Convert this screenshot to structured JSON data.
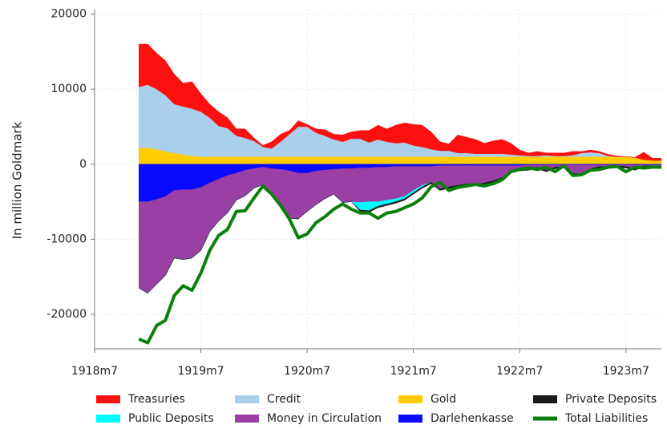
{
  "chart_data": {
    "type": "area",
    "ylabel": "In million Goldmark",
    "x": [
      "1918m12",
      "1919m1",
      "1919m2",
      "1919m3",
      "1919m4",
      "1919m5",
      "1919m6",
      "1919m7",
      "1919m8",
      "1919m9",
      "1919m10",
      "1919m11",
      "1919m12",
      "1920m1",
      "1920m2",
      "1920m3",
      "1920m4",
      "1920m5",
      "1920m6",
      "1920m7",
      "1920m8",
      "1920m9",
      "1920m10",
      "1920m11",
      "1920m12",
      "1921m1",
      "1921m2",
      "1921m3",
      "1921m4",
      "1921m5",
      "1921m6",
      "1921m7",
      "1921m8",
      "1921m9",
      "1921m10",
      "1921m11",
      "1921m12",
      "1922m1",
      "1922m2",
      "1922m3",
      "1922m4",
      "1922m5",
      "1922m6",
      "1922m7",
      "1922m8",
      "1922m9",
      "1922m10",
      "1922m11",
      "1922m12",
      "1923m1",
      "1923m2",
      "1923m3",
      "1923m4",
      "1923m5",
      "1923m6",
      "1923m7",
      "1923m8",
      "1923m9",
      "1923m10",
      "1923m11"
    ],
    "xlim": [
      "1918m7",
      "1923m11"
    ],
    "xticks": [
      "1918m7",
      "1919m7",
      "1920m7",
      "1921m7",
      "1922m7",
      "1923m7"
    ],
    "ylim": [
      -24600,
      20600
    ],
    "yticks": [
      -20000,
      -10000,
      0,
      10000,
      20000
    ],
    "grid": true,
    "legend": "bottom",
    "series": [
      {
        "name": "Treasuries",
        "color": "#ff1010",
        "values": [
          5700,
          5400,
          4800,
          4600,
          4000,
          3100,
          3600,
          2400,
          1800,
          1900,
          1400,
          900,
          1200,
          400,
          200,
          900,
          1000,
          500,
          800,
          300,
          500,
          800,
          700,
          900,
          900,
          1100,
          1600,
          1900,
          1700,
          2400,
          2600,
          2800,
          2900,
          2300,
          1200,
          900,
          2400,
          2100,
          1900,
          1400,
          1700,
          1900,
          1500,
          700,
          400,
          600,
          300,
          400,
          400,
          500,
          200,
          300,
          200,
          200,
          100,
          0,
          0,
          1000,
          300,
          300
        ]
      },
      {
        "name": "Credit",
        "color": "#a8d0ea",
        "values": [
          8100,
          8400,
          8000,
          7500,
          6500,
          6400,
          6300,
          6000,
          5200,
          4100,
          3800,
          2800,
          2500,
          2100,
          1300,
          1100,
          2000,
          3000,
          4000,
          4000,
          3200,
          2800,
          2300,
          2000,
          2400,
          2400,
          1900,
          2300,
          2000,
          1800,
          1900,
          1500,
          1300,
          1000,
          800,
          800,
          500,
          500,
          400,
          400,
          400,
          400,
          300,
          200,
          100,
          100,
          200,
          100,
          100,
          200,
          500,
          600,
          500,
          100,
          0,
          0,
          0,
          0,
          0,
          0
        ]
      },
      {
        "name": "Gold",
        "color": "#ffcc00",
        "values": [
          2200,
          2200,
          2000,
          1700,
          1500,
          1300,
          1100,
          1000,
          1000,
          1000,
          1000,
          1000,
          1000,
          1000,
          1000,
          1000,
          1000,
          1000,
          1000,
          1000,
          1000,
          1000,
          1000,
          1000,
          1000,
          1000,
          1000,
          1000,
          1000,
          1000,
          1000,
          1000,
          1000,
          1000,
          1000,
          1000,
          1000,
          1000,
          1000,
          1000,
          1000,
          1000,
          1000,
          1000,
          1000,
          1000,
          1000,
          1000,
          1000,
          1000,
          1000,
          1000,
          1000,
          1000,
          1000,
          1000,
          900,
          600,
          500,
          500
        ]
      },
      {
        "name": "Private Deposits",
        "color": "#1a1a1a",
        "values": [
          0,
          0,
          0,
          0,
          0,
          0,
          0,
          0,
          0,
          0,
          0,
          0,
          0,
          0,
          0,
          0,
          0,
          0,
          0,
          0,
          0,
          0,
          0,
          0,
          0,
          -200,
          -200,
          -200,
          -200,
          -200,
          -200,
          -200,
          -200,
          -200,
          -200,
          -200,
          -200,
          -200,
          -200,
          -200,
          -200,
          -200,
          -200,
          -200,
          -200,
          -200,
          -200,
          -200,
          -200,
          -200,
          -200,
          -200,
          -200,
          -200,
          -200,
          -200,
          -200,
          -200,
          -200,
          -200
        ]
      },
      {
        "name": "Public Deposits",
        "color": "#00ffff",
        "values": [
          0,
          0,
          0,
          0,
          0,
          0,
          0,
          0,
          0,
          0,
          0,
          0,
          0,
          0,
          0,
          0,
          0,
          0,
          0,
          0,
          0,
          0,
          0,
          0,
          0,
          -1000,
          -1200,
          -600,
          -500,
          -400,
          -300,
          -300,
          -200,
          0,
          0,
          0,
          0,
          0,
          0,
          0,
          0,
          0,
          0,
          0,
          0,
          0,
          0,
          0,
          0,
          0,
          0,
          0,
          0,
          0,
          0,
          0,
          0,
          0,
          0,
          0
        ]
      },
      {
        "name": "Money in Circulation",
        "color": "#9a3fa4",
        "values": [
          -11500,
          -12200,
          -11300,
          -10500,
          -9000,
          -9300,
          -9100,
          -8400,
          -6500,
          -5600,
          -5000,
          -3600,
          -3400,
          -2600,
          -2300,
          -3400,
          -4700,
          -6300,
          -6100,
          -5100,
          -4500,
          -3800,
          -3300,
          -4500,
          -4400,
          -4600,
          -4500,
          -4600,
          -4400,
          -4300,
          -4000,
          -3200,
          -2500,
          -2100,
          -3100,
          -2800,
          -2600,
          -2400,
          -2500,
          -2300,
          -2000,
          -1600,
          -600,
          -500,
          -500,
          -300,
          -700,
          -300,
          -200,
          -1100,
          -1200,
          -500,
          -200,
          -200,
          -100,
          -200,
          -500,
          -100,
          -100,
          -100
        ]
      },
      {
        "name": "Darlehenkasse",
        "color": "#0a0aff",
        "values": [
          -5000,
          -5000,
          -4700,
          -4300,
          -3500,
          -3400,
          -3400,
          -3100,
          -2500,
          -2000,
          -1500,
          -1200,
          -800,
          -600,
          -400,
          -600,
          -700,
          -900,
          -1200,
          -1200,
          -900,
          -800,
          -700,
          -600,
          -600,
          -500,
          -500,
          -400,
          -400,
          -300,
          -300,
          -300,
          -300,
          -300,
          -200,
          -200,
          -200,
          -200,
          -200,
          -200,
          -200,
          -200,
          -200,
          -200,
          -100,
          -100,
          -100,
          -100,
          -100,
          -100,
          -100,
          -100,
          -100,
          -100,
          -100,
          -100,
          -100,
          -100,
          -100,
          -100
        ]
      },
      {
        "name": "Total Liabilities",
        "color": "#0a800a",
        "type": "line",
        "values": [
          -23300,
          -23800,
          -21500,
          -20800,
          -17500,
          -16200,
          -16800,
          -14500,
          -11500,
          -9500,
          -8700,
          -6300,
          -6200,
          -4500,
          -2900,
          -4000,
          -5500,
          -7300,
          -9800,
          -9300,
          -7800,
          -7000,
          -6000,
          -5300,
          -6000,
          -6500,
          -6500,
          -7200,
          -6500,
          -6300,
          -5800,
          -5300,
          -4500,
          -3000,
          -2400,
          -3500,
          -3100,
          -2900,
          -2700,
          -2900,
          -2600,
          -2100,
          -1000,
          -700,
          -500,
          -700,
          -400,
          -1000,
          -200,
          -1500,
          -1400,
          -800,
          -700,
          -400,
          -300,
          -1000,
          -400,
          -500,
          -400,
          -400
        ]
      }
    ]
  }
}
